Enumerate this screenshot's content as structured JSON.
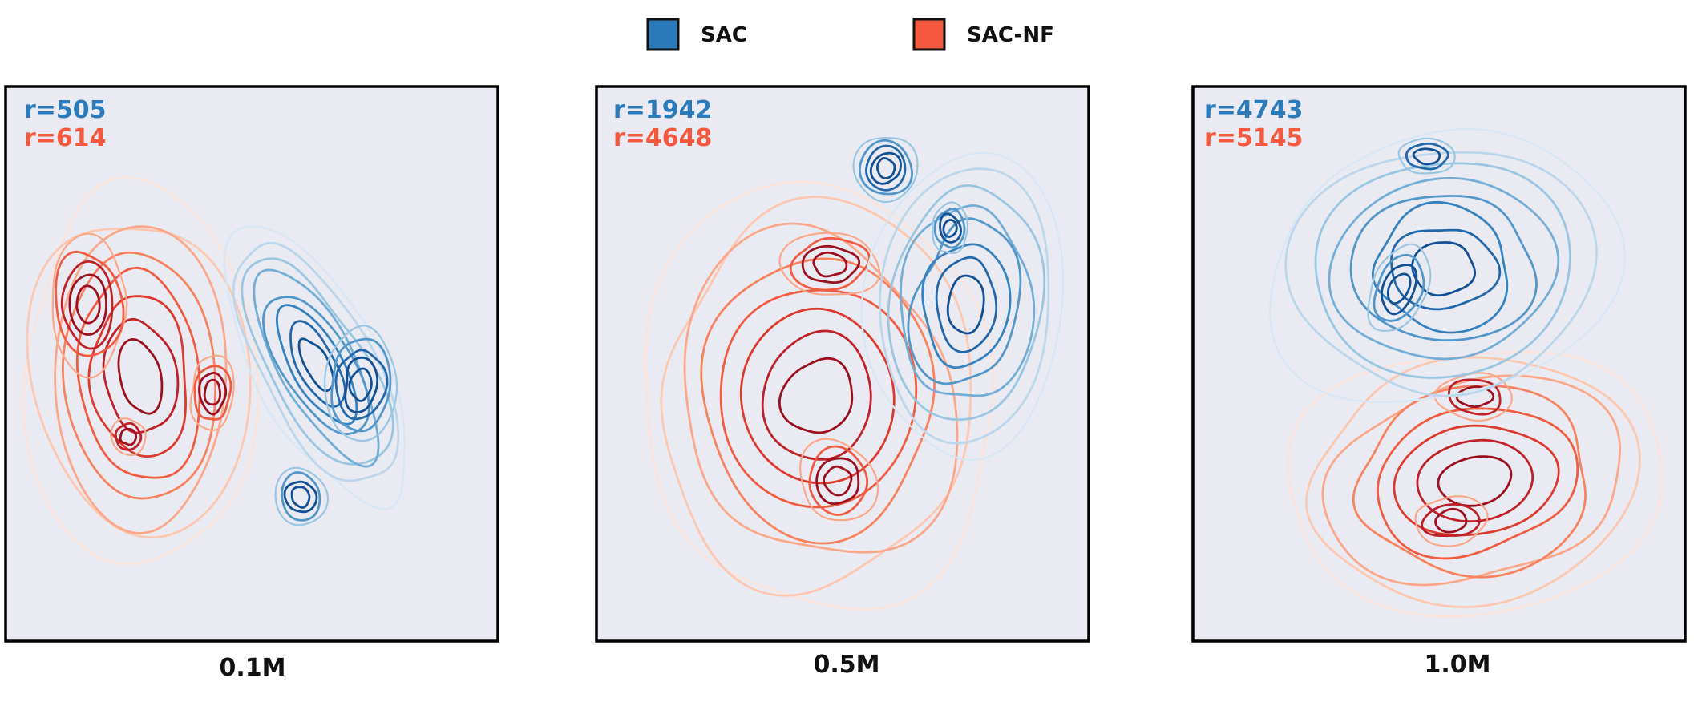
{
  "legend": {
    "items": [
      {
        "label": "SAC",
        "color": "#2b7bba"
      },
      {
        "label": "SAC-NF",
        "color": "#f4593d"
      }
    ]
  },
  "chart_data": {
    "type": "contour",
    "grid": false,
    "legend_placement": "top-center",
    "panels": [
      {
        "caption": "0.1M",
        "series": [
          {
            "name": "SAC",
            "reward_text": "r=505",
            "color": "#2b7bba"
          },
          {
            "name": "SAC-NF",
            "reward_text": "r=614",
            "color": "#f4593d"
          }
        ]
      },
      {
        "caption": "0.5M",
        "series": [
          {
            "name": "SAC",
            "reward_text": "r=1942",
            "color": "#2b7bba"
          },
          {
            "name": "SAC-NF",
            "reward_text": "r=4648",
            "color": "#f4593d"
          }
        ]
      },
      {
        "caption": "1.0M",
        "series": [
          {
            "name": "SAC",
            "reward_text": "r=4743",
            "color": "#2b7bba"
          },
          {
            "name": "SAC-NF",
            "reward_text": "r=5145",
            "color": "#f4593d"
          }
        ]
      }
    ]
  }
}
